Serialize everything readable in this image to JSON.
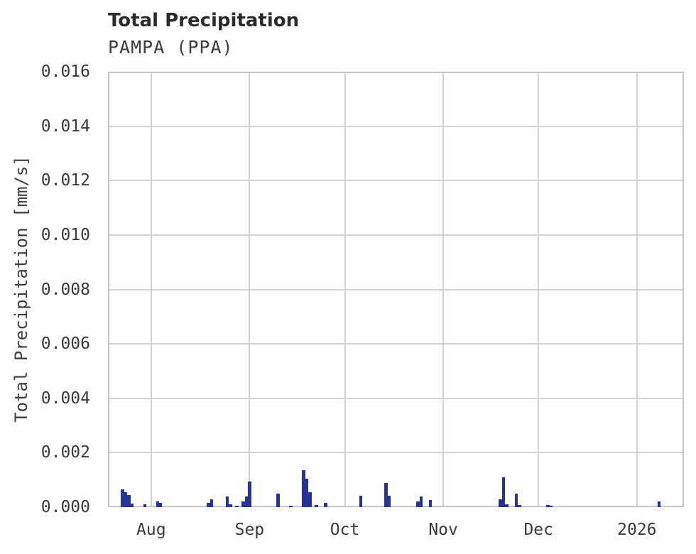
{
  "header": {
    "title": "Total Precipitation",
    "subtitle": "PAMPA (PPA)"
  },
  "colors": {
    "background": "#ffffff",
    "grid": "#d2d2d2",
    "spine": "#c5c5c5",
    "bar": "#27339b",
    "title_text": "#2b2b2b",
    "tick_text": "#3a3a3a"
  },
  "chart_data": {
    "type": "bar",
    "title": "Total Precipitation",
    "subtitle": "PAMPA (PPA)",
    "station": "PAMPA (PPA)",
    "xlabel": "",
    "ylabel": "Total Precipitation [mm/s]",
    "ylim": [
      0,
      0.016
    ],
    "yticks": [
      0,
      0.002,
      0.004,
      0.006,
      0.008,
      0.01,
      0.012,
      0.014,
      0.016
    ],
    "ytick_labels": [
      "0.000",
      "0.002",
      "0.004",
      "0.006",
      "0.008",
      "0.010",
      "0.012",
      "0.014",
      "0.016"
    ],
    "xtick_labels": [
      "Aug",
      "Sep",
      "Oct",
      "Nov",
      "Dec",
      "2026"
    ],
    "xtick_days": [
      0,
      31,
      61,
      92,
      122,
      153
    ],
    "x_unit": "days from Aug 1 (tick '2026' = Jan 1, 2026)",
    "x_range_days": [
      -13.6,
      167.8
    ],
    "grid": true,
    "legend_position": "none",
    "bar_color": "#27339b",
    "series": [
      {
        "name": "Total Precipitation [mm/s]",
        "points": [
          {
            "date": "Jul 23",
            "day": -9,
            "value": 0.00065
          },
          {
            "date": "Jul 24",
            "day": -8,
            "value": 0.00055
          },
          {
            "date": "Jul 25",
            "day": -7,
            "value": 0.00045
          },
          {
            "date": "Jul 26",
            "day": -6,
            "value": 0.00012
          },
          {
            "date": "Jul 30",
            "day": -2,
            "value": 0.0001
          },
          {
            "date": "Aug 3",
            "day": 2,
            "value": 0.0002
          },
          {
            "date": "Aug 4",
            "day": 3,
            "value": 0.00015
          },
          {
            "date": "Aug 19",
            "day": 18,
            "value": 0.00017
          },
          {
            "date": "Aug 20",
            "day": 19,
            "value": 0.00028
          },
          {
            "date": "Aug 25",
            "day": 24,
            "value": 0.0004
          },
          {
            "date": "Aug 26",
            "day": 25,
            "value": 0.0001
          },
          {
            "date": "Aug 28",
            "day": 27,
            "value": 5e-05
          },
          {
            "date": "Aug 30",
            "day": 29,
            "value": 0.00022
          },
          {
            "date": "Aug 31",
            "day": 30,
            "value": 0.0004
          },
          {
            "date": "Sep 1",
            "day": 31,
            "value": 0.00093
          },
          {
            "date": "Sep 10",
            "day": 40,
            "value": 0.00049
          },
          {
            "date": "Sep 14",
            "day": 44,
            "value": 6e-05
          },
          {
            "date": "Sep 18",
            "day": 48,
            "value": 0.00135
          },
          {
            "date": "Sep 19",
            "day": 49,
            "value": 0.00105
          },
          {
            "date": "Sep 20",
            "day": 50,
            "value": 0.00055
          },
          {
            "date": "Sep 22",
            "day": 52,
            "value": 8e-05
          },
          {
            "date": "Sep 25",
            "day": 55,
            "value": 0.00015
          },
          {
            "date": "Oct 6",
            "day": 66,
            "value": 0.00043
          },
          {
            "date": "Oct 14",
            "day": 74,
            "value": 0.00089
          },
          {
            "date": "Oct 15",
            "day": 75,
            "value": 0.00043
          },
          {
            "date": "Oct 24",
            "day": 84,
            "value": 0.0002
          },
          {
            "date": "Oct 25",
            "day": 85,
            "value": 0.00038
          },
          {
            "date": "Oct 28",
            "day": 88,
            "value": 0.00025
          },
          {
            "date": "Nov 19",
            "day": 110,
            "value": 0.0003
          },
          {
            "date": "Nov 20",
            "day": 111,
            "value": 0.0011
          },
          {
            "date": "Nov 21",
            "day": 112,
            "value": 0.0001
          },
          {
            "date": "Nov 24",
            "day": 115,
            "value": 0.0005
          },
          {
            "date": "Nov 25",
            "day": 116,
            "value": 8e-05
          },
          {
            "date": "Dec 4",
            "day": 125,
            "value": 7e-05
          },
          {
            "date": "Dec 5",
            "day": 126,
            "value": 6e-05
          },
          {
            "date": "Jan 8",
            "day": 160,
            "value": 0.0002
          }
        ]
      }
    ]
  }
}
